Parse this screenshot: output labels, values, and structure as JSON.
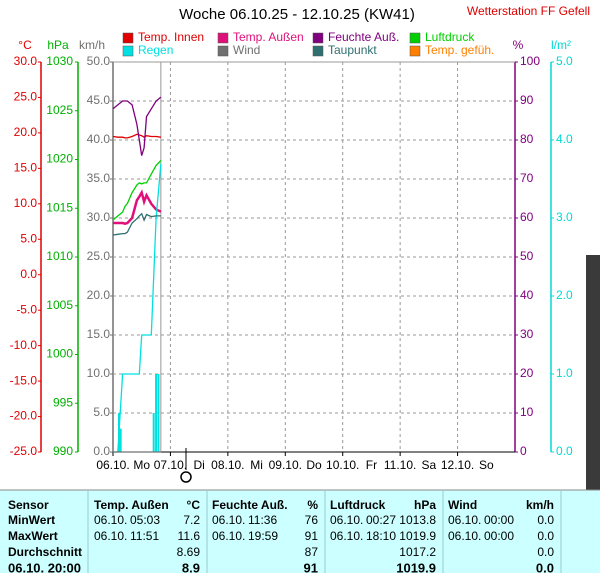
{
  "chart_data": {
    "type": "line",
    "title": "Woche 06.10.25 - 12.10.25 (KW41)",
    "station": "Wetterstation FF Gefell",
    "xlim": [
      0,
      168
    ],
    "xticks": [
      {
        "value": 0,
        "label": "06.10."
      },
      {
        "value": 24,
        "label": "07.10."
      },
      {
        "value": 48,
        "label": "08.10."
      },
      {
        "value": 72,
        "label": "09.10."
      },
      {
        "value": 96,
        "label": "10.10."
      },
      {
        "value": 120,
        "label": "11.10."
      },
      {
        "value": 144,
        "label": "12.10."
      }
    ],
    "day_names": [
      "Mo",
      "Di",
      "Mi",
      "Do",
      "Fr",
      "Sa",
      "So"
    ],
    "grid": true,
    "axes": {
      "temp": {
        "title": "°C",
        "color": "#e00000",
        "ylim": [
          -25,
          30
        ],
        "yticks": [
          {
            "value": -25,
            "label": "-25.0"
          },
          {
            "value": -20,
            "label": "-20.0"
          },
          {
            "value": -15,
            "label": "-15.0"
          },
          {
            "value": -10,
            "label": "-10.0"
          },
          {
            "value": -5,
            "label": "-5.0"
          },
          {
            "value": 0,
            "label": "0.0"
          },
          {
            "value": 5,
            "label": "5.0"
          },
          {
            "value": 10,
            "label": "10.0"
          },
          {
            "value": 15,
            "label": "15.0"
          },
          {
            "value": 20,
            "label": "20.0"
          },
          {
            "value": 25,
            "label": "25.0"
          },
          {
            "value": 30,
            "label": "30.0"
          }
        ]
      },
      "pressure": {
        "title": "hPa",
        "color": "#00b000",
        "ylim": [
          990,
          1030
        ],
        "yticks": [
          990,
          995,
          1000,
          1005,
          1010,
          1015,
          1020,
          1025,
          1030
        ]
      },
      "wind": {
        "title": "km/h",
        "color": "#707070",
        "ylim": [
          0,
          50
        ],
        "yticks": [
          {
            "value": 0,
            "label": "0.0"
          },
          {
            "value": 5,
            "label": "5.0"
          },
          {
            "value": 10,
            "label": "10.0"
          },
          {
            "value": 15,
            "label": "15.0"
          },
          {
            "value": 20,
            "label": "20.0"
          },
          {
            "value": 25,
            "label": "25.0"
          },
          {
            "value": 30,
            "label": "30.0"
          },
          {
            "value": 35,
            "label": "35.0"
          },
          {
            "value": 40,
            "label": "40.0"
          },
          {
            "value": 45,
            "label": "45.0"
          },
          {
            "value": 50,
            "label": "50.0"
          }
        ]
      },
      "humidity": {
        "title": "%",
        "color": "#800080",
        "ylim": [
          0,
          100
        ],
        "yticks": [
          0,
          10,
          20,
          30,
          40,
          50,
          60,
          70,
          80,
          90,
          100
        ]
      },
      "rain": {
        "title": "l/m²",
        "color": "#00d8d8",
        "ylim": [
          0,
          5
        ],
        "yticks": [
          {
            "value": 0,
            "label": "0.0"
          },
          {
            "value": 1,
            "label": "1.0"
          },
          {
            "value": 2,
            "label": "2.0"
          },
          {
            "value": 3,
            "label": "3.0"
          },
          {
            "value": 4,
            "label": "4.0"
          },
          {
            "value": 5,
            "label": "5.0"
          }
        ]
      }
    },
    "x": [
      0,
      2,
      4,
      5,
      6,
      8,
      10,
      11,
      12,
      13,
      14,
      16,
      18,
      20
    ],
    "series": [
      {
        "name": "Temp. Innen",
        "color": "#e00000",
        "axis": "temp",
        "values": [
          19.5,
          19.4,
          19.4,
          19.3,
          19.3,
          19.5,
          19.8,
          19.7,
          19.6,
          19.4,
          19.6,
          19.5,
          19.5,
          19.4
        ]
      },
      {
        "name": "Temp. Außen",
        "color": "#e0107a",
        "axis": "temp",
        "values": [
          7.3,
          7.3,
          7.3,
          7.2,
          7.3,
          8.0,
          10.5,
          11.0,
          11.6,
          10.3,
          11.2,
          10.0,
          9.2,
          8.9
        ]
      },
      {
        "name": "Feuchte Auß.",
        "color": "#800080",
        "axis": "humidity",
        "values": [
          88,
          89,
          90,
          90,
          90,
          89,
          84,
          80,
          76,
          78,
          86,
          88,
          90,
          91
        ]
      },
      {
        "name": "Luftdruck",
        "color": "#00d000",
        "axis": "pressure",
        "values": [
          1013.8,
          1014.2,
          1014.6,
          1015.2,
          1015.5,
          1016.6,
          1017.4,
          1017.6,
          1017.5,
          1017.6,
          1017.6,
          1018.5,
          1019.4,
          1019.9
        ]
      },
      {
        "name": "Regen",
        "color": "#00e0e0",
        "axis": "rain",
        "values": [
          0,
          0,
          1.0,
          1.0,
          1.0,
          1.0,
          1.0,
          1.0,
          1.5,
          1.5,
          1.5,
          1.5,
          3.0,
          3.7
        ],
        "bar_x": [
          2.5,
          3.2,
          17,
          18,
          19
        ],
        "bar_values": [
          0.5,
          0.3,
          0.5,
          1.0,
          1.0
        ]
      },
      {
        "name": "Wind",
        "color": "#707070",
        "axis": "wind",
        "values": [
          0,
          0,
          0,
          0,
          0,
          0,
          0,
          0,
          0,
          0,
          0,
          0,
          0,
          0
        ]
      },
      {
        "name": "Taupunkt",
        "color": "#2f6f6f",
        "axis": "temp",
        "values": [
          5.6,
          5.7,
          5.8,
          5.8,
          6.0,
          7.3,
          7.9,
          8.3,
          8.6,
          7.7,
          8.5,
          8.2,
          8.3,
          8.3
        ]
      },
      {
        "name": "Temp. gefüh.",
        "color": "#ff8000",
        "axis": "temp",
        "values": [
          null,
          null,
          null,
          null,
          null,
          null,
          null,
          null,
          null,
          null,
          null,
          null,
          null,
          null
        ]
      }
    ]
  },
  "table": {
    "header": [
      "Sensor",
      [
        "Temp. Außen",
        "°C"
      ],
      [
        "Feuchte Auß.",
        "%"
      ],
      [
        "Luftdruck",
        "hPa"
      ],
      [
        "Wind",
        "km/h"
      ]
    ],
    "rows": [
      {
        "label": "MinWert",
        "cells": [
          [
            "06.10.",
            "05:03",
            "7.2"
          ],
          [
            "06.10.",
            "11:36",
            "76"
          ],
          [
            "06.10.",
            "00:27",
            "1013.8"
          ],
          [
            "06.10.",
            "00:00",
            "0.0"
          ]
        ]
      },
      {
        "label": "MaxWert",
        "cells": [
          [
            "06.10.",
            "11:51",
            "11.6"
          ],
          [
            "06.10.",
            "19:59",
            "91"
          ],
          [
            "06.10.",
            "18:10",
            "1019.9"
          ],
          [
            "06.10.",
            "00:00",
            "0.0"
          ]
        ]
      },
      {
        "label": "Durchschnitt",
        "cells": [
          [
            "8.69"
          ],
          [
            "87"
          ],
          [
            "1017.2"
          ],
          [
            "0.0"
          ]
        ]
      },
      {
        "label": "06.10. 20:00",
        "cells": [
          [
            "8.9"
          ],
          [
            "91"
          ],
          [
            "1019.9"
          ],
          [
            "0.0"
          ]
        ]
      }
    ]
  }
}
